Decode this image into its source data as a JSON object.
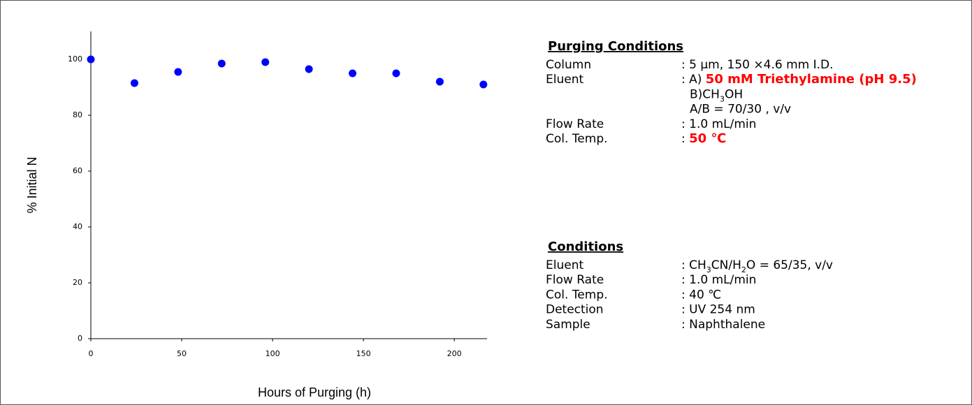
{
  "chart_data": {
    "type": "scatter",
    "x_label": "Hours of Purging (h)",
    "y_label": "% Initial N",
    "x": [
      0,
      24,
      48,
      72,
      96,
      120,
      144,
      168,
      192,
      216
    ],
    "values": [
      100,
      91.5,
      95.5,
      98.5,
      99,
      96.5,
      95,
      95,
      92,
      91
    ],
    "color": "#0000ff",
    "xlim": [
      0,
      218
    ],
    "xticks": [
      0,
      50,
      100,
      150,
      200
    ],
    "ylim": [
      0,
      110
    ],
    "yticks": [
      0,
      20,
      40,
      60,
      80,
      100
    ]
  },
  "panels": [
    {
      "title": "Purging Conditions",
      "rows": [
        {
          "label": "Column",
          "lines": [
            [
              {
                "text": ": 5 μm, 150 ×4.6 mm I.D."
              }
            ]
          ]
        },
        {
          "label": "Eluent",
          "lines": [
            [
              {
                "text": ": A) "
              },
              {
                "text": "50 mM Triethylamine (pH 9.5)",
                "highlight": true
              }
            ],
            [
              {
                "text": "B)CH"
              },
              {
                "text": "3",
                "sub": true
              },
              {
                "text": "OH"
              }
            ],
            [
              {
                "text": "A/B = 70/30 , v/v"
              }
            ]
          ]
        },
        {
          "label": "Flow  Rate",
          "lines": [
            [
              {
                "text": ": 1.0 mL/min"
              }
            ]
          ]
        },
        {
          "label": "Col. Temp.",
          "lines": [
            [
              {
                "text": ": "
              },
              {
                "text": "50 ℃",
                "highlight": true
              }
            ]
          ]
        }
      ]
    },
    {
      "title": "Conditions",
      "rows": [
        {
          "label": "Eluent",
          "lines": [
            [
              {
                "text": ": CH"
              },
              {
                "text": "3",
                "sub": true
              },
              {
                "text": "CN/H"
              },
              {
                "text": "2",
                "sub": true
              },
              {
                "text": "O = 65/35, v/v"
              }
            ]
          ]
        },
        {
          "label": "Flow  Rate",
          "lines": [
            [
              {
                "text": ": 1.0 mL/min"
              }
            ]
          ]
        },
        {
          "label": "Col. Temp.",
          "lines": [
            [
              {
                "text": ": 40 ℃"
              }
            ]
          ]
        },
        {
          "label": "Detection",
          "lines": [
            [
              {
                "text": ": UV 254 nm"
              }
            ]
          ]
        },
        {
          "label": "Sample",
          "lines": [
            [
              {
                "text": ": Naphthalene"
              }
            ]
          ]
        }
      ]
    }
  ]
}
